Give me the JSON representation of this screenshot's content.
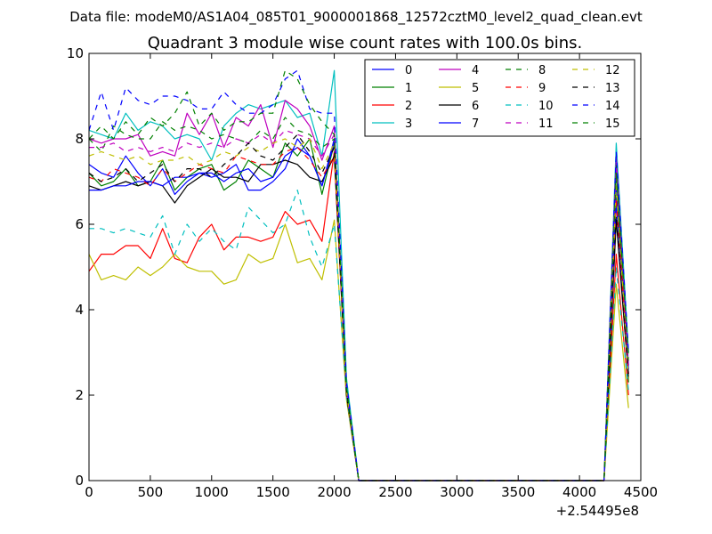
{
  "suptitle": "Data file: modeM0/AS1A04_085T01_9000001868_12572cztM0_level2_quad_clean.evt",
  "chart_data": {
    "type": "line",
    "title": "Quadrant 3 module wise count rates with 100.0s bins.",
    "xlabel": "",
    "ylabel": "",
    "x_offset_label": "+2.54495e8",
    "xlim": [
      0,
      4500
    ],
    "ylim": [
      0,
      10
    ],
    "x_ticks": [
      0,
      500,
      1000,
      1500,
      2000,
      2500,
      3000,
      3500,
      4000,
      4500
    ],
    "y_ticks": [
      0,
      2,
      4,
      6,
      8,
      10
    ],
    "grid": false,
    "legend_position": "top-right",
    "x": [
      0,
      100,
      200,
      300,
      400,
      500,
      600,
      700,
      800,
      900,
      1000,
      1100,
      1200,
      1300,
      1400,
      1500,
      1600,
      1700,
      1800,
      1900,
      2000,
      2100,
      2200,
      2300,
      2400,
      2500,
      2600,
      2700,
      2800,
      2900,
      3000,
      3100,
      3200,
      3300,
      3400,
      3500,
      3600,
      3700,
      3800,
      3900,
      4000,
      4100,
      4200,
      4300,
      4400
    ],
    "series": [
      {
        "name": "0",
        "color": "#0000ff",
        "dash": "solid",
        "values": [
          7.4,
          7.2,
          7.1,
          7.6,
          7.2,
          6.9,
          7.3,
          6.7,
          7.0,
          7.2,
          7.1,
          7.2,
          7.4,
          6.8,
          6.8,
          7.0,
          7.3,
          8.0,
          7.6,
          6.9,
          8.0,
          2.2,
          0,
          0,
          0,
          0,
          0,
          0,
          0,
          0,
          0,
          0,
          0,
          0,
          0,
          0,
          0,
          0,
          0,
          0,
          0,
          0,
          0,
          6.8,
          2.5
        ]
      },
      {
        "name": "1",
        "color": "#008000",
        "dash": "solid",
        "values": [
          7.2,
          6.9,
          7.0,
          7.3,
          6.9,
          7.0,
          7.5,
          6.8,
          7.1,
          7.3,
          7.4,
          6.8,
          7.0,
          7.5,
          7.3,
          7.1,
          7.9,
          7.6,
          8.0,
          6.7,
          7.9,
          2.1,
          0,
          0,
          0,
          0,
          0,
          0,
          0,
          0,
          0,
          0,
          0,
          0,
          0,
          0,
          0,
          0,
          0,
          0,
          0,
          0,
          0,
          7.3,
          2.3
        ]
      },
      {
        "name": "2",
        "color": "#ff0000",
        "dash": "solid",
        "values": [
          4.9,
          5.3,
          5.3,
          5.5,
          5.5,
          5.2,
          5.9,
          5.2,
          5.1,
          5.7,
          6.0,
          5.4,
          5.7,
          5.7,
          5.6,
          5.7,
          6.3,
          6.0,
          6.1,
          5.6,
          7.7,
          2.0,
          0,
          0,
          0,
          0,
          0,
          0,
          0,
          0,
          0,
          0,
          0,
          0,
          0,
          0,
          0,
          0,
          0,
          0,
          0,
          0,
          0,
          5.3,
          2.0
        ]
      },
      {
        "name": "3",
        "color": "#00bfbf",
        "dash": "solid",
        "values": [
          8.2,
          8.1,
          8.0,
          8.6,
          8.2,
          8.4,
          8.3,
          8.0,
          8.1,
          8.0,
          7.5,
          8.3,
          8.6,
          8.8,
          8.7,
          8.8,
          8.9,
          8.5,
          8.6,
          7.6,
          9.6,
          2.4,
          0,
          0,
          0,
          0,
          0,
          0,
          0,
          0,
          0,
          0,
          0,
          0,
          0,
          0,
          0,
          0,
          0,
          0,
          0,
          0,
          0,
          7.9,
          3.0
        ]
      },
      {
        "name": "4",
        "color": "#bf00bf",
        "dash": "solid",
        "values": [
          8.0,
          7.9,
          8.0,
          8.0,
          8.1,
          7.6,
          7.7,
          7.6,
          8.6,
          8.1,
          8.6,
          7.8,
          8.5,
          8.3,
          8.8,
          7.8,
          8.9,
          8.7,
          8.3,
          7.5,
          8.3,
          2.1,
          0,
          0,
          0,
          0,
          0,
          0,
          0,
          0,
          0,
          0,
          0,
          0,
          0,
          0,
          0,
          0,
          0,
          0,
          0,
          0,
          0,
          7.6,
          2.7
        ]
      },
      {
        "name": "5",
        "color": "#bfbf00",
        "dash": "solid",
        "values": [
          5.3,
          4.7,
          4.8,
          4.7,
          5.0,
          4.8,
          5.0,
          5.3,
          5.0,
          4.9,
          4.9,
          4.6,
          4.7,
          5.3,
          5.1,
          5.2,
          6.0,
          5.1,
          5.2,
          4.7,
          6.1,
          1.9,
          0,
          0,
          0,
          0,
          0,
          0,
          0,
          0,
          0,
          0,
          0,
          0,
          0,
          0,
          0,
          0,
          0,
          0,
          0,
          0,
          0,
          4.6,
          1.7
        ]
      },
      {
        "name": "6",
        "color": "#000000",
        "dash": "solid",
        "values": [
          6.9,
          6.8,
          6.9,
          7.0,
          6.9,
          7.0,
          6.9,
          6.5,
          6.9,
          7.1,
          7.3,
          7.1,
          7.1,
          7.0,
          7.4,
          7.4,
          7.5,
          7.4,
          7.1,
          7.0,
          7.6,
          2.0,
          0,
          0,
          0,
          0,
          0,
          0,
          0,
          0,
          0,
          0,
          0,
          0,
          0,
          0,
          0,
          0,
          0,
          0,
          0,
          0,
          0,
          6.1,
          2.4
        ]
      },
      {
        "name": "7",
        "color": "#0000ff",
        "dash": "solid",
        "values": [
          6.8,
          6.8,
          6.9,
          6.9,
          7.0,
          7.0,
          6.9,
          7.1,
          7.1,
          7.2,
          7.2,
          7.0,
          7.2,
          7.3,
          7.0,
          7.1,
          7.6,
          7.8,
          7.6,
          6.9,
          7.9,
          2.1,
          0,
          0,
          0,
          0,
          0,
          0,
          0,
          0,
          0,
          0,
          0,
          0,
          0,
          0,
          0,
          0,
          0,
          0,
          0,
          0,
          0,
          6.5,
          2.6
        ]
      },
      {
        "name": "8",
        "color": "#008000",
        "dash": "dashed",
        "values": [
          8.0,
          7.7,
          8.3,
          8.1,
          8.0,
          8.0,
          8.4,
          8.2,
          8.3,
          8.2,
          8.0,
          8.1,
          8.0,
          7.9,
          8.2,
          8.0,
          8.5,
          8.2,
          8.1,
          7.8,
          8.0,
          2.2,
          0,
          0,
          0,
          0,
          0,
          0,
          0,
          0,
          0,
          0,
          0,
          0,
          0,
          0,
          0,
          0,
          0,
          0,
          0,
          0,
          0,
          7.4,
          2.8
        ]
      },
      {
        "name": "9",
        "color": "#ff0000",
        "dash": "dashed",
        "values": [
          7.1,
          7.0,
          7.3,
          7.2,
          7.1,
          6.9,
          7.3,
          7.0,
          7.2,
          7.4,
          7.3,
          7.2,
          7.6,
          7.5,
          7.4,
          7.4,
          7.7,
          7.8,
          7.5,
          7.1,
          7.6,
          2.1,
          0,
          0,
          0,
          0,
          0,
          0,
          0,
          0,
          0,
          0,
          0,
          0,
          0,
          0,
          0,
          0,
          0,
          0,
          0,
          0,
          0,
          6.6,
          2.5
        ]
      },
      {
        "name": "10",
        "color": "#00bfbf",
        "dash": "dashed",
        "values": [
          5.9,
          5.9,
          5.8,
          5.9,
          5.8,
          5.7,
          6.2,
          5.3,
          6.0,
          5.6,
          5.9,
          5.6,
          5.4,
          6.4,
          6.1,
          5.8,
          6.0,
          6.8,
          5.7,
          5.0,
          6.0,
          2.0,
          0,
          0,
          0,
          0,
          0,
          0,
          0,
          0,
          0,
          0,
          0,
          0,
          0,
          0,
          0,
          0,
          0,
          0,
          0,
          0,
          0,
          5.0,
          2.1
        ]
      },
      {
        "name": "11",
        "color": "#bf00bf",
        "dash": "dashed",
        "values": [
          7.8,
          7.8,
          7.9,
          7.7,
          7.8,
          7.7,
          7.8,
          7.7,
          7.9,
          7.8,
          7.9,
          7.8,
          8.0,
          7.9,
          8.1,
          7.9,
          8.2,
          8.1,
          8.0,
          7.6,
          8.1,
          2.1,
          0,
          0,
          0,
          0,
          0,
          0,
          0,
          0,
          0,
          0,
          0,
          0,
          0,
          0,
          0,
          0,
          0,
          0,
          0,
          0,
          0,
          7.3,
          2.6
        ]
      },
      {
        "name": "12",
        "color": "#bfbf00",
        "dash": "dashed",
        "values": [
          7.6,
          7.7,
          7.6,
          7.5,
          7.6,
          7.4,
          7.5,
          7.5,
          7.6,
          7.4,
          7.5,
          7.7,
          7.6,
          7.8,
          7.7,
          7.9,
          8.0,
          7.8,
          8.0,
          7.3,
          7.9,
          2.1,
          0,
          0,
          0,
          0,
          0,
          0,
          0,
          0,
          0,
          0,
          0,
          0,
          0,
          0,
          0,
          0,
          0,
          0,
          0,
          0,
          0,
          6.9,
          2.4
        ]
      },
      {
        "name": "13",
        "color": "#000000",
        "dash": "dashed",
        "values": [
          7.2,
          7.0,
          7.1,
          7.3,
          7.0,
          7.2,
          7.4,
          7.0,
          7.3,
          7.3,
          7.1,
          7.4,
          7.6,
          7.9,
          7.6,
          7.5,
          7.8,
          8.1,
          7.7,
          7.2,
          7.8,
          2.1,
          0,
          0,
          0,
          0,
          0,
          0,
          0,
          0,
          0,
          0,
          0,
          0,
          0,
          0,
          0,
          0,
          0,
          0,
          0,
          0,
          0,
          6.2,
          2.4
        ]
      },
      {
        "name": "14",
        "color": "#0000ff",
        "dash": "dashed",
        "values": [
          8.2,
          9.1,
          8.2,
          9.2,
          8.9,
          8.8,
          9.0,
          9.0,
          8.9,
          8.7,
          8.7,
          9.1,
          8.8,
          8.6,
          8.6,
          8.8,
          9.4,
          9.6,
          8.7,
          8.6,
          8.6,
          2.3,
          0,
          0,
          0,
          0,
          0,
          0,
          0,
          0,
          0,
          0,
          0,
          0,
          0,
          0,
          0,
          0,
          0,
          0,
          0,
          0,
          0,
          7.7,
          3.0
        ]
      },
      {
        "name": "15",
        "color": "#008000",
        "dash": "dashed",
        "values": [
          8.0,
          8.3,
          8.0,
          8.4,
          8.1,
          8.5,
          8.3,
          8.6,
          9.1,
          8.3,
          8.6,
          8.2,
          8.4,
          8.4,
          8.6,
          8.6,
          9.6,
          9.4,
          8.8,
          8.4,
          8.1,
          2.2,
          0,
          0,
          0,
          0,
          0,
          0,
          0,
          0,
          0,
          0,
          0,
          0,
          0,
          0,
          0,
          0,
          0,
          0,
          0,
          0,
          0,
          7.2,
          2.9
        ]
      }
    ]
  }
}
